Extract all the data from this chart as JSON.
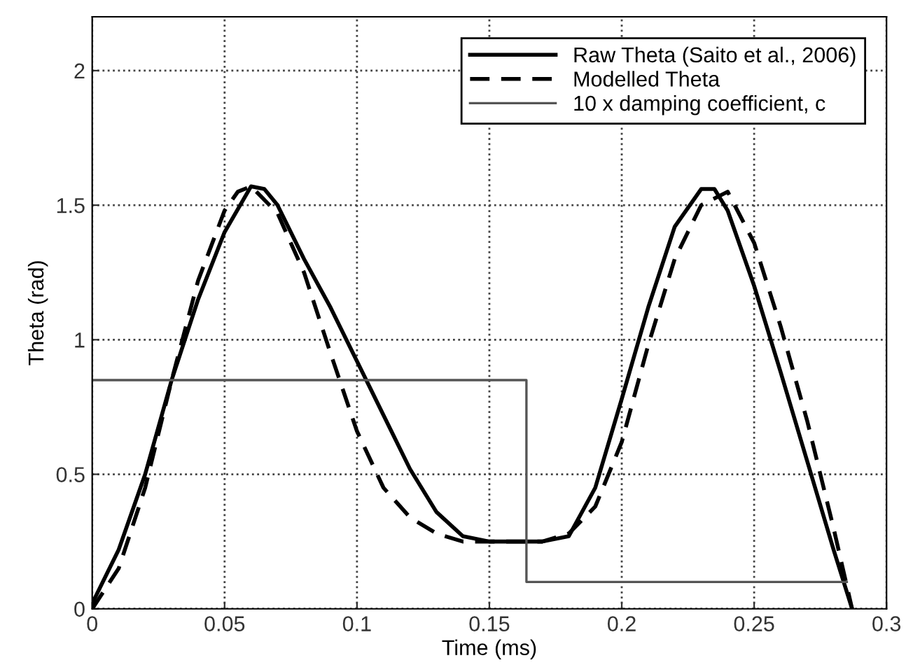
{
  "chart_data": {
    "type": "line",
    "xlabel": "Time (ms)",
    "ylabel": "Theta (rad)",
    "xlim": [
      0,
      0.3
    ],
    "ylim": [
      0,
      2.2
    ],
    "xticks": [
      0,
      0.05,
      0.1,
      0.15,
      0.2,
      0.25,
      0.3
    ],
    "yticks": [
      0,
      0.5,
      1,
      1.5,
      2
    ],
    "grid": true,
    "legend": "top right",
    "series": [
      {
        "name": "Raw Theta (Saito et al., 2006)",
        "color": "#000000",
        "line_style": "solid",
        "x": [
          0,
          0.01,
          0.02,
          0.03,
          0.04,
          0.05,
          0.06,
          0.065,
          0.07,
          0.08,
          0.09,
          0.1,
          0.11,
          0.12,
          0.13,
          0.14,
          0.15,
          0.17,
          0.18,
          0.19,
          0.2,
          0.21,
          0.22,
          0.23,
          0.235,
          0.24,
          0.25,
          0.26,
          0.27,
          0.28,
          0.287
        ],
        "values": [
          0.02,
          0.22,
          0.5,
          0.85,
          1.15,
          1.4,
          1.57,
          1.56,
          1.5,
          1.3,
          1.12,
          0.92,
          0.72,
          0.52,
          0.36,
          0.27,
          0.25,
          0.25,
          0.27,
          0.45,
          0.78,
          1.12,
          1.42,
          1.56,
          1.56,
          1.48,
          1.2,
          0.88,
          0.55,
          0.22,
          0.0
        ]
      },
      {
        "name": "Modelled Theta",
        "color": "#000000",
        "line_style": "dashed",
        "x": [
          0,
          0.01,
          0.02,
          0.03,
          0.04,
          0.05,
          0.055,
          0.06,
          0.07,
          0.08,
          0.09,
          0.1,
          0.11,
          0.12,
          0.13,
          0.14,
          0.17,
          0.18,
          0.19,
          0.2,
          0.21,
          0.22,
          0.23,
          0.24,
          0.25,
          0.26,
          0.27,
          0.28,
          0.287
        ],
        "values": [
          0.0,
          0.15,
          0.45,
          0.85,
          1.22,
          1.48,
          1.55,
          1.57,
          1.47,
          1.25,
          0.95,
          0.66,
          0.45,
          0.34,
          0.28,
          0.25,
          0.25,
          0.28,
          0.38,
          0.62,
          0.98,
          1.3,
          1.5,
          1.55,
          1.36,
          1.05,
          0.7,
          0.3,
          0.0
        ]
      },
      {
        "name": "10 x damping coefficient, c",
        "type": "step",
        "color": "#555555",
        "line_style": "solid",
        "x": [
          0,
          0.164,
          0.285
        ],
        "values": [
          0.85,
          0.1,
          0.1
        ]
      }
    ]
  }
}
